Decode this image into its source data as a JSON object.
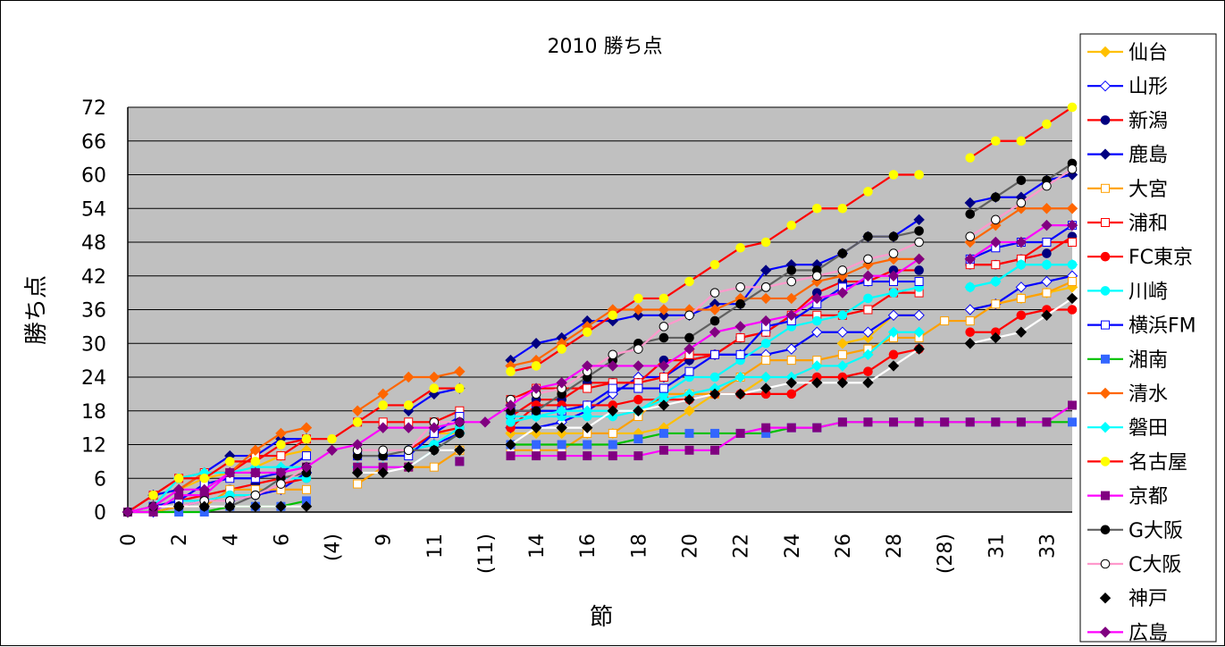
{
  "chart_data": {
    "type": "line",
    "title": "2010 勝ち点",
    "xlabel": "節",
    "ylabel": "勝ち点",
    "ylim": [
      0,
      72
    ],
    "yticks": [
      "0",
      "6",
      "12",
      "18",
      "24",
      "30",
      "36",
      "42",
      "48",
      "54",
      "60",
      "66",
      "72"
    ],
    "categories": [
      "0",
      "1",
      "2",
      "3",
      "4",
      "5",
      "6",
      "7",
      "(4)",
      "8",
      "9",
      "10",
      "11",
      "12",
      "(11)",
      "13",
      "14",
      "15",
      "16",
      "17",
      "18",
      "19",
      "20",
      "21",
      "22",
      "23",
      "24",
      "25",
      "26",
      "27",
      "28",
      "29",
      "(28)",
      "30",
      "31",
      "32",
      "33",
      "34"
    ],
    "xtick_labels": [
      "0",
      "",
      "2",
      "",
      "4",
      "",
      "6",
      "",
      "(4)",
      "",
      "9",
      "",
      "11",
      "",
      "(11)",
      "",
      "14",
      "",
      "16",
      "",
      "18",
      "",
      "20",
      "",
      "22",
      "",
      "24",
      "",
      "26",
      "",
      "28",
      "",
      "(28)",
      "",
      "31",
      "",
      "33",
      ""
    ],
    "grid": true,
    "legend_position": "right",
    "plot_background": "#c0c0c0",
    "series": [
      {
        "name": "仙台",
        "color": "#ffc000",
        "marker": "diamond-filled",
        "values": [
          0,
          3,
          4,
          6,
          7,
          8,
          10,
          11,
          null,
          null,
          null,
          11,
          14,
          14,
          null,
          14,
          14,
          14,
          14,
          14,
          14,
          15,
          18,
          21,
          21,
          24,
          null,
          null,
          30,
          31,
          35,
          35,
          null,
          36,
          37,
          38,
          39,
          40
        ]
      },
      {
        "name": "山形",
        "color": "#0000ff",
        "marker": "diamond-open",
        "values": [
          0,
          0,
          1,
          2,
          2,
          3,
          4,
          7,
          null,
          null,
          null,
          11,
          12,
          14,
          null,
          15,
          15,
          16,
          18,
          21,
          24,
          24,
          27,
          28,
          28,
          28,
          29,
          32,
          32,
          32,
          35,
          35,
          null,
          36,
          37,
          40,
          41,
          42
        ]
      },
      {
        "name": "新潟",
        "color": "#ff0000",
        "marker": "circle-navy",
        "values": [
          0,
          1,
          2,
          3,
          4,
          5,
          6,
          7,
          null,
          null,
          null,
          11,
          14,
          15,
          null,
          17,
          20,
          20,
          23,
          23,
          23,
          27,
          27,
          28,
          31,
          32,
          35,
          39,
          41,
          41,
          43,
          43,
          null,
          44,
          44,
          45,
          46,
          49
        ]
      },
      {
        "name": "鹿島",
        "color": "#0000ff",
        "marker": "diamond-navy",
        "values": [
          0,
          3,
          4,
          7,
          10,
          10,
          13,
          13,
          null,
          null,
          null,
          18,
          21,
          22,
          null,
          27,
          30,
          31,
          34,
          34,
          35,
          35,
          35,
          37,
          37,
          43,
          44,
          44,
          46,
          49,
          49,
          52,
          null,
          55,
          56,
          56,
          59,
          60
        ]
      },
      {
        "name": "大宮",
        "color": "#ffa000",
        "marker": "square-open",
        "values": [
          0,
          0,
          1,
          1,
          4,
          4,
          4,
          4,
          null,
          5,
          8,
          8,
          8,
          11,
          null,
          11,
          11,
          11,
          14,
          14,
          17,
          21,
          21,
          21,
          24,
          27,
          27,
          27,
          28,
          29,
          31,
          31,
          34,
          34,
          37,
          38,
          39,
          41
        ]
      },
      {
        "name": "浦和",
        "color": "#ff0000",
        "marker": "square-open",
        "values": [
          0,
          3,
          6,
          7,
          7,
          10,
          10,
          13,
          null,
          16,
          16,
          16,
          16,
          18,
          null,
          20,
          22,
          22,
          22,
          23,
          23,
          24,
          28,
          28,
          31,
          32,
          35,
          35,
          35,
          36,
          39,
          39,
          null,
          44,
          44,
          45,
          48,
          48
        ]
      },
      {
        "name": "FC東京",
        "color": "#ff0000",
        "marker": "circle-red",
        "values": [
          0,
          1,
          2,
          2,
          3,
          3,
          5,
          6,
          null,
          null,
          null,
          null,
          null,
          null,
          null,
          15,
          19,
          19,
          19,
          19,
          20,
          20,
          20,
          21,
          21,
          21,
          21,
          24,
          24,
          25,
          28,
          29,
          null,
          32,
          32,
          35,
          36,
          36
        ]
      },
      {
        "name": "川崎",
        "color": "#00ffff",
        "marker": "circle-cyan",
        "values": [
          0,
          1,
          2,
          2,
          3,
          3,
          6,
          6,
          null,
          null,
          null,
          11,
          12,
          15,
          null,
          16,
          17,
          17,
          17,
          17,
          18,
          21,
          24,
          24,
          27,
          30,
          33,
          34,
          35,
          38,
          39,
          40,
          null,
          40,
          41,
          44,
          44,
          44
        ]
      },
      {
        "name": "横浜FM",
        "color": "#0000ff",
        "marker": "square-open",
        "values": [
          0,
          1,
          2,
          5,
          6,
          6,
          7,
          10,
          null,
          10,
          10,
          10,
          14,
          17,
          null,
          18,
          18,
          18,
          19,
          22,
          22,
          22,
          25,
          28,
          28,
          33,
          34,
          37,
          40,
          41,
          41,
          41,
          null,
          45,
          47,
          48,
          48,
          51
        ]
      },
      {
        "name": "湘南",
        "color": "#00c000",
        "marker": "square-blue",
        "values": [
          0,
          0,
          0,
          0,
          1,
          1,
          1,
          2,
          null,
          null,
          null,
          null,
          null,
          9,
          null,
          12,
          12,
          12,
          12,
          12,
          13,
          14,
          14,
          14,
          14,
          14,
          15,
          15,
          16,
          16,
          16,
          16,
          16,
          16,
          16,
          16,
          16,
          16
        ]
      },
      {
        "name": "清水",
        "color": "#ff6600",
        "marker": "diamond-orange",
        "values": [
          0,
          1,
          4,
          7,
          7,
          11,
          14,
          15,
          null,
          18,
          21,
          24,
          24,
          25,
          null,
          26,
          27,
          30,
          33,
          36,
          36,
          36,
          36,
          36,
          38,
          38,
          38,
          41,
          42,
          44,
          45,
          45,
          null,
          48,
          51,
          54,
          54,
          54
        ]
      },
      {
        "name": "磐田",
        "color": "#00ffff",
        "marker": "diamond-cyan",
        "values": [
          0,
          1,
          6,
          7,
          7,
          8,
          8,
          8,
          null,
          8,
          8,
          8,
          11,
          14,
          null,
          17,
          17,
          18,
          18,
          18,
          18,
          20,
          21,
          22,
          24,
          24,
          24,
          26,
          26,
          28,
          32,
          32,
          null,
          40,
          41,
          44,
          44,
          44
        ]
      },
      {
        "name": "名古屋",
        "color": "#ff0000",
        "marker": "circle-yellow",
        "values": [
          0,
          3,
          6,
          6,
          9,
          9,
          12,
          13,
          13,
          16,
          19,
          19,
          22,
          22,
          null,
          25,
          26,
          29,
          32,
          35,
          38,
          38,
          41,
          44,
          47,
          48,
          51,
          54,
          54,
          57,
          60,
          60,
          null,
          63,
          66,
          66,
          69,
          72
        ]
      },
      {
        "name": "京都",
        "color": "#ff00ff",
        "marker": "square-purple",
        "values": [
          0,
          0,
          3,
          3,
          7,
          7,
          7,
          8,
          null,
          8,
          8,
          8,
          null,
          9,
          null,
          10,
          10,
          10,
          10,
          10,
          10,
          11,
          11,
          11,
          14,
          15,
          15,
          15,
          16,
          16,
          16,
          16,
          16,
          16,
          16,
          16,
          16,
          19
        ]
      },
      {
        "name": "G大阪",
        "color": "#606060",
        "marker": "circle-black",
        "values": [
          0,
          1,
          1,
          1,
          1,
          3,
          6,
          7,
          null,
          10,
          10,
          11,
          11,
          14,
          null,
          18,
          18,
          21,
          24,
          27,
          30,
          31,
          31,
          34,
          37,
          40,
          43,
          43,
          46,
          49,
          49,
          50,
          null,
          53,
          56,
          59,
          59,
          62
        ]
      },
      {
        "name": "C大阪",
        "color": "#ff99cc",
        "marker": "circle-open",
        "values": [
          0,
          1,
          1,
          2,
          2,
          3,
          5,
          8,
          null,
          11,
          11,
          11,
          16,
          16,
          null,
          20,
          21,
          22,
          25,
          28,
          29,
          33,
          35,
          39,
          40,
          40,
          41,
          42,
          43,
          45,
          46,
          48,
          null,
          49,
          52,
          55,
          58,
          61
        ]
      },
      {
        "name": "神戸",
        "color": "#ffffff",
        "marker": "diamond-black",
        "values": [
          0,
          1,
          1,
          1,
          1,
          1,
          1,
          1,
          null,
          7,
          7,
          8,
          11,
          11,
          null,
          12,
          15,
          15,
          15,
          18,
          18,
          19,
          20,
          21,
          21,
          22,
          23,
          23,
          23,
          23,
          26,
          29,
          null,
          30,
          31,
          32,
          35,
          38
        ]
      },
      {
        "name": "広島",
        "color": "#ff00ff",
        "marker": "diamond-purple",
        "values": [
          0,
          1,
          4,
          4,
          7,
          7,
          7,
          8,
          11,
          12,
          15,
          15,
          15,
          16,
          16,
          19,
          22,
          23,
          26,
          26,
          26,
          26,
          29,
          32,
          33,
          34,
          35,
          38,
          39,
          42,
          42,
          45,
          null,
          45,
          48,
          48,
          51,
          51
        ]
      }
    ]
  }
}
